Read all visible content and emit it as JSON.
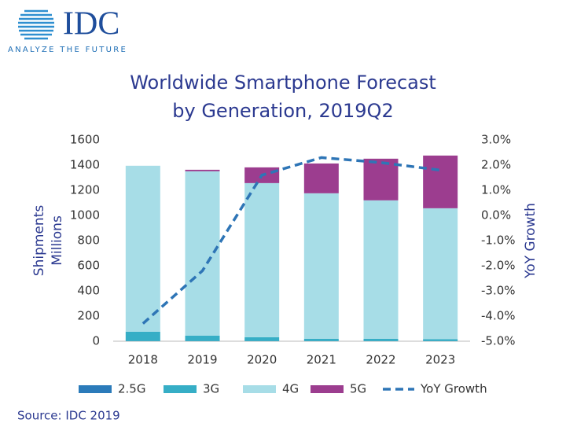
{
  "logo": {
    "name": "IDC",
    "tagline": "ANALYZE THE FUTURE"
  },
  "chart_data": {
    "type": "stacked-bar-line",
    "title": [
      "Worldwide Smartphone Forecast",
      "by Generation, 2019Q2"
    ],
    "ylabel": [
      "Shipments",
      "Millions"
    ],
    "y2label": "YoY Growth",
    "source": "Source: IDC 2019",
    "categories": [
      "2018",
      "2019",
      "2020",
      "2021",
      "2022",
      "2023"
    ],
    "series": [
      {
        "name": "2.5G",
        "color": "#2b7bba",
        "values": [
          1,
          1,
          1,
          1,
          1,
          1
        ]
      },
      {
        "name": "3G",
        "color": "#36aec6",
        "values": [
          75,
          44,
          31,
          19,
          19,
          16
        ]
      },
      {
        "name": "4G",
        "color": "#a7dde7",
        "values": [
          1319,
          1306,
          1225,
          1156,
          1100,
          1040
        ]
      },
      {
        "name": "5G",
        "color": "#9c3d8f",
        "values": [
          0,
          12,
          125,
          237,
          331,
          419
        ]
      },
      {
        "name": "YoY Growth",
        "color": "#2e75b6",
        "axis": "y2",
        "values": [
          -4.3,
          -2.2,
          1.6,
          2.3,
          2.1,
          1.8
        ]
      }
    ],
    "ylim": [
      0,
      1600
    ],
    "yticks": [
      0,
      200,
      400,
      600,
      800,
      1000,
      1200,
      1400,
      1600
    ],
    "y2lim": [
      -5,
      3
    ],
    "y2ticks": [
      {
        "value": -5,
        "label": "-5.0%"
      },
      {
        "value": -4,
        "label": "-4.0%"
      },
      {
        "value": -3,
        "label": "-3.0%"
      },
      {
        "value": -2,
        "label": "-2.0%"
      },
      {
        "value": -1,
        "label": "-1.0%"
      },
      {
        "value": 0,
        "label": "0.0%"
      },
      {
        "value": 1,
        "label": "1.0%"
      },
      {
        "value": 2,
        "label": "2.0%"
      },
      {
        "value": 3,
        "label": "3.0%"
      }
    ],
    "grid": false,
    "legend": "bottom"
  }
}
